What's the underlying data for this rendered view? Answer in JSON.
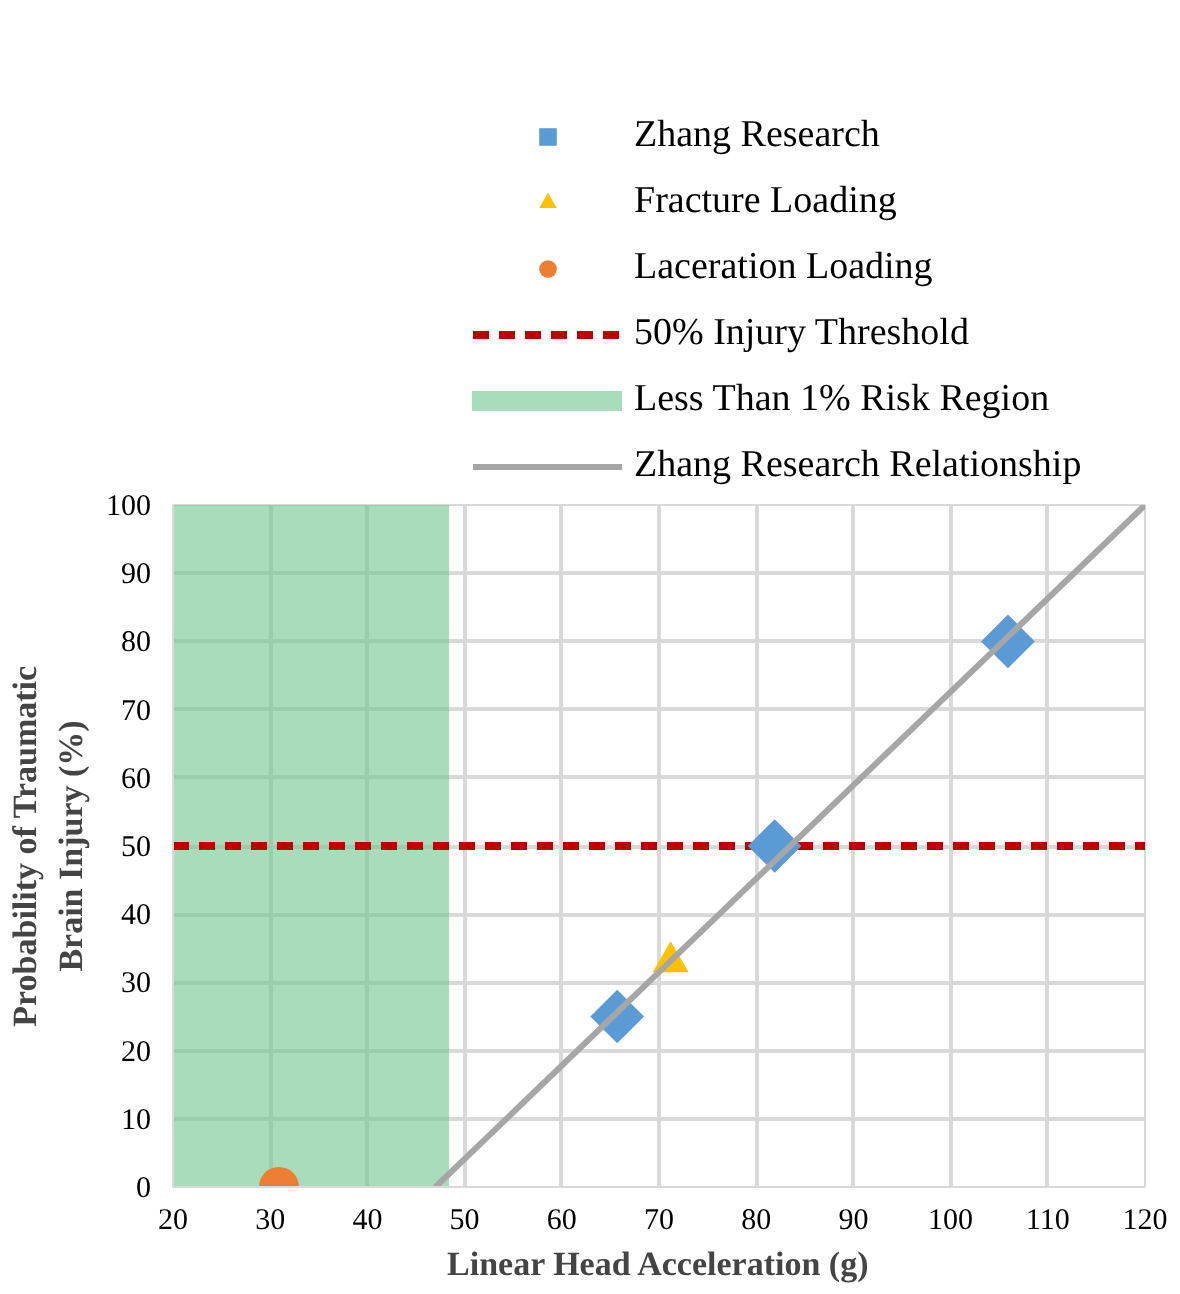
{
  "chart_data": {
    "type": "scatter",
    "xlabel": "Linear Head Acceleration (g)",
    "ylabel": "Probability of Traumatic\nBrain Injury (%)",
    "xlim": [
      20,
      120
    ],
    "ylim": [
      0,
      100
    ],
    "xticks": [
      20,
      30,
      40,
      50,
      60,
      70,
      80,
      90,
      100,
      110,
      120
    ],
    "yticks": [
      0,
      10,
      20,
      30,
      40,
      50,
      60,
      70,
      80,
      90,
      100
    ],
    "grid": true,
    "legend": "top",
    "series": [
      {
        "name": "Zhang Research",
        "color": "#5b9bd5",
        "marker": "diamond",
        "x": [
          65.7,
          81.9,
          105.9
        ],
        "values": [
          25,
          50,
          80
        ]
      },
      {
        "name": "Fracture Loading",
        "color": "#ffc000",
        "marker": "triangle",
        "x": [
          71.2
        ],
        "values": [
          33
        ]
      },
      {
        "name": "Laceration Loading",
        "color": "#ed7d31",
        "marker": "circle",
        "x": [
          30.9
        ],
        "values": [
          0
        ]
      },
      {
        "name": "Zhang Research Relationship",
        "type": "line",
        "color": "#a6a6a6",
        "marker": "none",
        "x": [
          47,
          120
        ],
        "values": [
          0,
          100
        ]
      }
    ],
    "ref_lines": [
      {
        "axis": "y",
        "value": 50,
        "label": "50% Injury Threshold",
        "color": "#c00000",
        "line_style": "dashed"
      }
    ],
    "bands": [
      {
        "axis": "x",
        "from": 20,
        "to": 48.4,
        "label": "Less Than 1% Risk Region",
        "color": "#70c48c"
      }
    ]
  }
}
